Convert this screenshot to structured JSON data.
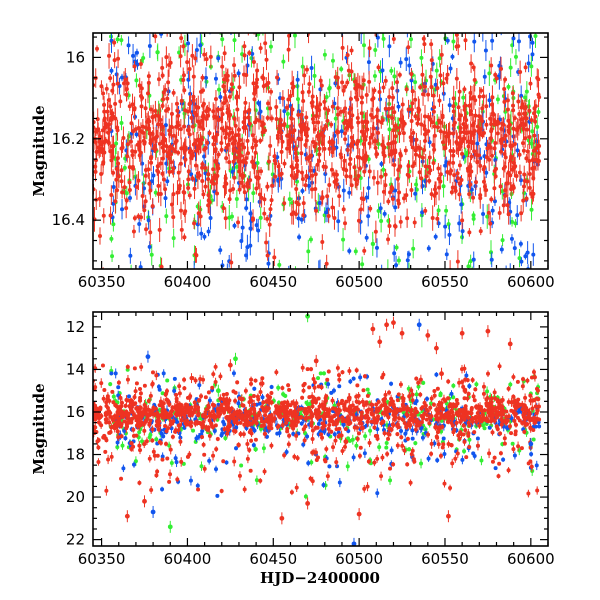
{
  "colors": {
    "green": "#33ee33",
    "blue": "#1155ee",
    "red": "#ee3322"
  },
  "chart_data": [
    {
      "type": "scatter",
      "panel": "top",
      "title": "",
      "xlabel": "",
      "ylabel": "Magnitude",
      "xlim": [
        60345,
        60610
      ],
      "ylim": [
        16.52,
        15.94
      ],
      "y_inverted": true,
      "xticks": [
        "60350",
        "60400",
        "60450",
        "60500",
        "60550",
        "60600"
      ],
      "yticks": [
        "16",
        "16.2",
        "16.4"
      ],
      "error_bars": true,
      "series": [
        {
          "color_key": "green",
          "x_range": [
            60355,
            60605
          ],
          "y_center": 16.18,
          "y_scatter": 0.3,
          "n": 420
        },
        {
          "color_key": "blue",
          "x_range": [
            60355,
            60605
          ],
          "y_center": 16.2,
          "y_scatter": 0.32,
          "n": 480
        },
        {
          "color_key": "red",
          "x_range": [
            60340,
            60605
          ],
          "y_center": 16.2,
          "y_scatter": 0.1,
          "n": 1400
        }
      ]
    },
    {
      "type": "scatter",
      "panel": "bottom",
      "title": "",
      "xlabel": "HJD−2400000",
      "ylabel": "Magnitude",
      "xlim": [
        60345,
        60610
      ],
      "ylim": [
        22.3,
        11.3
      ],
      "y_inverted": true,
      "xticks": [
        "60350",
        "60400",
        "60450",
        "60500",
        "60550",
        "60600"
      ],
      "yticks": [
        "12",
        "14",
        "16",
        "18",
        "20",
        "22"
      ],
      "error_bars": true,
      "series": [
        {
          "color_key": "green",
          "x_range": [
            60355,
            60605
          ],
          "y_center": 16.3,
          "y_scatter": 0.6,
          "n": 300
        },
        {
          "color_key": "blue",
          "x_range": [
            60355,
            60605
          ],
          "y_center": 16.4,
          "y_scatter": 0.5,
          "n": 400
        },
        {
          "color_key": "red",
          "x_range": [
            60340,
            60605
          ],
          "y_center": 16.1,
          "y_scatter": 0.45,
          "n": 1500
        }
      ],
      "outliers": [
        {
          "color_key": "red",
          "x": 60365,
          "y": 20.9
        },
        {
          "color_key": "red",
          "x": 60375,
          "y": 20.2
        },
        {
          "color_key": "blue",
          "x": 60380,
          "y": 20.7
        },
        {
          "color_key": "green",
          "x": 60390,
          "y": 21.4
        },
        {
          "color_key": "blue",
          "x": 60377,
          "y": 13.4
        },
        {
          "color_key": "green",
          "x": 60418,
          "y": 15.0
        },
        {
          "color_key": "red",
          "x": 60425,
          "y": 13.8
        },
        {
          "color_key": "green",
          "x": 60428,
          "y": 13.5
        },
        {
          "color_key": "green",
          "x": 60470,
          "y": 11.5
        },
        {
          "color_key": "red",
          "x": 60475,
          "y": 13.6
        },
        {
          "color_key": "blue",
          "x": 60497,
          "y": 22.2
        },
        {
          "color_key": "red",
          "x": 60500,
          "y": 20.8
        },
        {
          "color_key": "red",
          "x": 60508,
          "y": 12.1
        },
        {
          "color_key": "red",
          "x": 60512,
          "y": 12.7
        },
        {
          "color_key": "red",
          "x": 60516,
          "y": 11.9
        },
        {
          "color_key": "red",
          "x": 60520,
          "y": 11.8
        },
        {
          "color_key": "red",
          "x": 60525,
          "y": 12.3
        },
        {
          "color_key": "blue",
          "x": 60535,
          "y": 11.9
        },
        {
          "color_key": "red",
          "x": 60540,
          "y": 12.4
        },
        {
          "color_key": "red",
          "x": 60545,
          "y": 13.0
        },
        {
          "color_key": "red",
          "x": 60548,
          "y": 14.2
        },
        {
          "color_key": "red",
          "x": 60552,
          "y": 20.9
        },
        {
          "color_key": "red",
          "x": 60560,
          "y": 12.3
        },
        {
          "color_key": "red",
          "x": 60575,
          "y": 12.2
        },
        {
          "color_key": "red",
          "x": 60588,
          "y": 12.8
        },
        {
          "color_key": "blue",
          "x": 60600,
          "y": 17.5
        },
        {
          "color_key": "red",
          "x": 60470,
          "y": 20.3
        },
        {
          "color_key": "red",
          "x": 60455,
          "y": 21.0
        }
      ]
    }
  ]
}
